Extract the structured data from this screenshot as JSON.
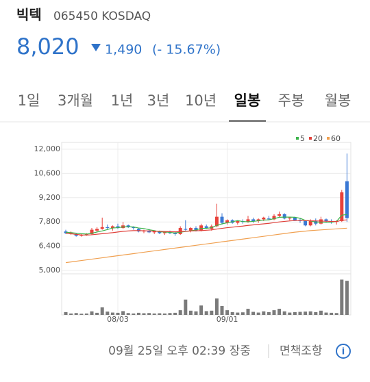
{
  "header": {
    "name": "빅텍",
    "code": "065450 KOSDAQ",
    "price": "8,020",
    "change": "1,490",
    "change_pct": "(- 15.67%)"
  },
  "tabs": [
    "1일",
    "3개월",
    "1년",
    "3년",
    "10년",
    "일봉",
    "주봉",
    "월봉"
  ],
  "selected_tab": 5,
  "chart_data": {
    "type": "candlestick",
    "up_color": "#e8413a",
    "down_color": "#3a78d4",
    "volume_color": "#7a7a7a",
    "categories": [
      null,
      null,
      null,
      null,
      null,
      null,
      null,
      null,
      null,
      null,
      "08/03",
      null,
      null,
      null,
      null,
      null,
      null,
      null,
      null,
      null,
      null,
      null,
      null,
      null,
      null,
      null,
      null,
      null,
      null,
      null,
      null,
      "09/01",
      null,
      null,
      null,
      null,
      null,
      null,
      null,
      null,
      null,
      null,
      null,
      null,
      null,
      null,
      null,
      null,
      null,
      null,
      null,
      null,
      null,
      null,
      null
    ],
    "open": [
      7250,
      7150,
      7100,
      7000,
      7050,
      7100,
      7300,
      7400,
      7500,
      7450,
      7550,
      7450,
      7600,
      7500,
      7400,
      7250,
      7300,
      7200,
      7250,
      7150,
      7200,
      7150,
      7100,
      7400,
      7300,
      7450,
      7300,
      7550,
      7400,
      7550,
      8100,
      7750,
      7900,
      7750,
      7850,
      7800,
      7950,
      7850,
      7950,
      8000,
      7950,
      8150,
      8250,
      8000,
      8050,
      7900,
      7850,
      7600,
      7850,
      7700,
      7950,
      7850,
      7800,
      7850,
      10150
    ],
    "high": [
      7350,
      7250,
      7150,
      7100,
      7150,
      7450,
      7500,
      8050,
      7650,
      7600,
      7700,
      7800,
      7650,
      7550,
      7450,
      7350,
      7400,
      7300,
      7300,
      7250,
      7300,
      7250,
      7550,
      7900,
      7500,
      7550,
      7700,
      7650,
      7650,
      8850,
      8300,
      7950,
      7950,
      7900,
      7950,
      8150,
      8050,
      8000,
      8100,
      8150,
      8250,
      8400,
      8300,
      8100,
      8100,
      8000,
      7900,
      7950,
      8000,
      8100,
      8000,
      7950,
      7900,
      9650,
      11750
    ],
    "low": [
      7100,
      7050,
      6950,
      6950,
      7000,
      7050,
      7200,
      7350,
      7350,
      7300,
      7400,
      7400,
      7450,
      7350,
      7200,
      7150,
      7150,
      7100,
      7100,
      7050,
      7100,
      7000,
      7050,
      7300,
      7200,
      7250,
      7250,
      7400,
      7300,
      7500,
      7650,
      7650,
      7700,
      7650,
      7700,
      7750,
      7750,
      7750,
      7850,
      7900,
      7900,
      8050,
      7950,
      7900,
      7850,
      7750,
      7550,
      7550,
      7600,
      7650,
      7750,
      7700,
      7650,
      7800,
      7800
    ],
    "close": [
      7150,
      7200,
      7000,
      7050,
      7100,
      7350,
      7400,
      7500,
      7450,
      7550,
      7450,
      7600,
      7500,
      7450,
      7250,
      7300,
      7200,
      7250,
      7150,
      7200,
      7150,
      7100,
      7450,
      7350,
      7450,
      7300,
      7600,
      7450,
      7550,
      8100,
      7750,
      7900,
      7750,
      7850,
      7800,
      7950,
      7850,
      7950,
      8050,
      7950,
      8150,
      8250,
      8000,
      8050,
      7900,
      7850,
      7600,
      7850,
      7700,
      7950,
      7850,
      7800,
      7850,
      9510,
      8020
    ],
    "volume": [
      120,
      60,
      80,
      50,
      60,
      150,
      90,
      320,
      140,
      100,
      90,
      160,
      80,
      60,
      90,
      70,
      80,
      60,
      70,
      60,
      80,
      90,
      200,
      650,
      180,
      150,
      400,
      160,
      180,
      700,
      380,
      200,
      120,
      100,
      110,
      260,
      130,
      100,
      150,
      120,
      200,
      260,
      150,
      100,
      120,
      130,
      140,
      150,
      120,
      180,
      100,
      90,
      80,
      1500,
      1450
    ],
    "vlim": [
      0,
      1600
    ],
    "ma": [
      {
        "name": "5",
        "color": "#3cb44b",
        "values": [
          7200,
          7180,
          7150,
          7120,
          7100,
          7140,
          7220,
          7280,
          7360,
          7450,
          7470,
          7510,
          7520,
          7510,
          7450,
          7420,
          7350,
          7300,
          7230,
          7220,
          7200,
          7160,
          7210,
          7250,
          7290,
          7330,
          7430,
          7430,
          7470,
          7600,
          7690,
          7750,
          7810,
          7880,
          7820,
          7810,
          7830,
          7870,
          7910,
          7920,
          7990,
          8070,
          8080,
          8080,
          8070,
          8010,
          7890,
          7860,
          7790,
          7790,
          7780,
          7780,
          7830,
          8190,
          8230
        ]
      },
      {
        "name": "20",
        "color": "#e0403a",
        "values": [
          7150,
          7120,
          7080,
          7050,
          7040,
          7060,
          7090,
          7120,
          7150,
          7180,
          7220,
          7260,
          7280,
          7300,
          7300,
          7290,
          7280,
          7270,
          7260,
          7250,
          7240,
          7230,
          7240,
          7260,
          7280,
          7290,
          7300,
          7320,
          7340,
          7390,
          7430,
          7470,
          7500,
          7530,
          7560,
          7600,
          7630,
          7660,
          7690,
          7720,
          7760,
          7800,
          7830,
          7860,
          7880,
          7890,
          7880,
          7870,
          7860,
          7850,
          7840,
          7830,
          7820,
          7900,
          7920
        ]
      },
      {
        "name": "60",
        "color": "#f0a050",
        "values": [
          5450,
          5490,
          5530,
          5570,
          5610,
          5650,
          5690,
          5730,
          5770,
          5810,
          5850,
          5890,
          5930,
          5970,
          6010,
          6050,
          6090,
          6130,
          6170,
          6210,
          6250,
          6290,
          6330,
          6370,
          6410,
          6450,
          6490,
          6530,
          6570,
          6610,
          6650,
          6690,
          6730,
          6770,
          6810,
          6850,
          6890,
          6930,
          6970,
          7010,
          7050,
          7090,
          7130,
          7170,
          7210,
          7240,
          7270,
          7300,
          7320,
          7340,
          7360,
          7380,
          7400,
          7420,
          7440
        ]
      }
    ],
    "ylim": [
      5000,
      12000
    ],
    "yticks": [
      {
        "value": 12000,
        "label": "12,000"
      },
      {
        "value": 10600,
        "label": "10,600"
      },
      {
        "value": 9200,
        "label": "9,200"
      },
      {
        "value": 7800,
        "label": "7,800"
      },
      {
        "value": 6400,
        "label": "6,400"
      },
      {
        "value": 5000,
        "label": "5,000"
      }
    ],
    "grid": true
  },
  "footer": {
    "time": "09월 25일 오후 02:39 장중",
    "disclaimer": "면책조항"
  }
}
